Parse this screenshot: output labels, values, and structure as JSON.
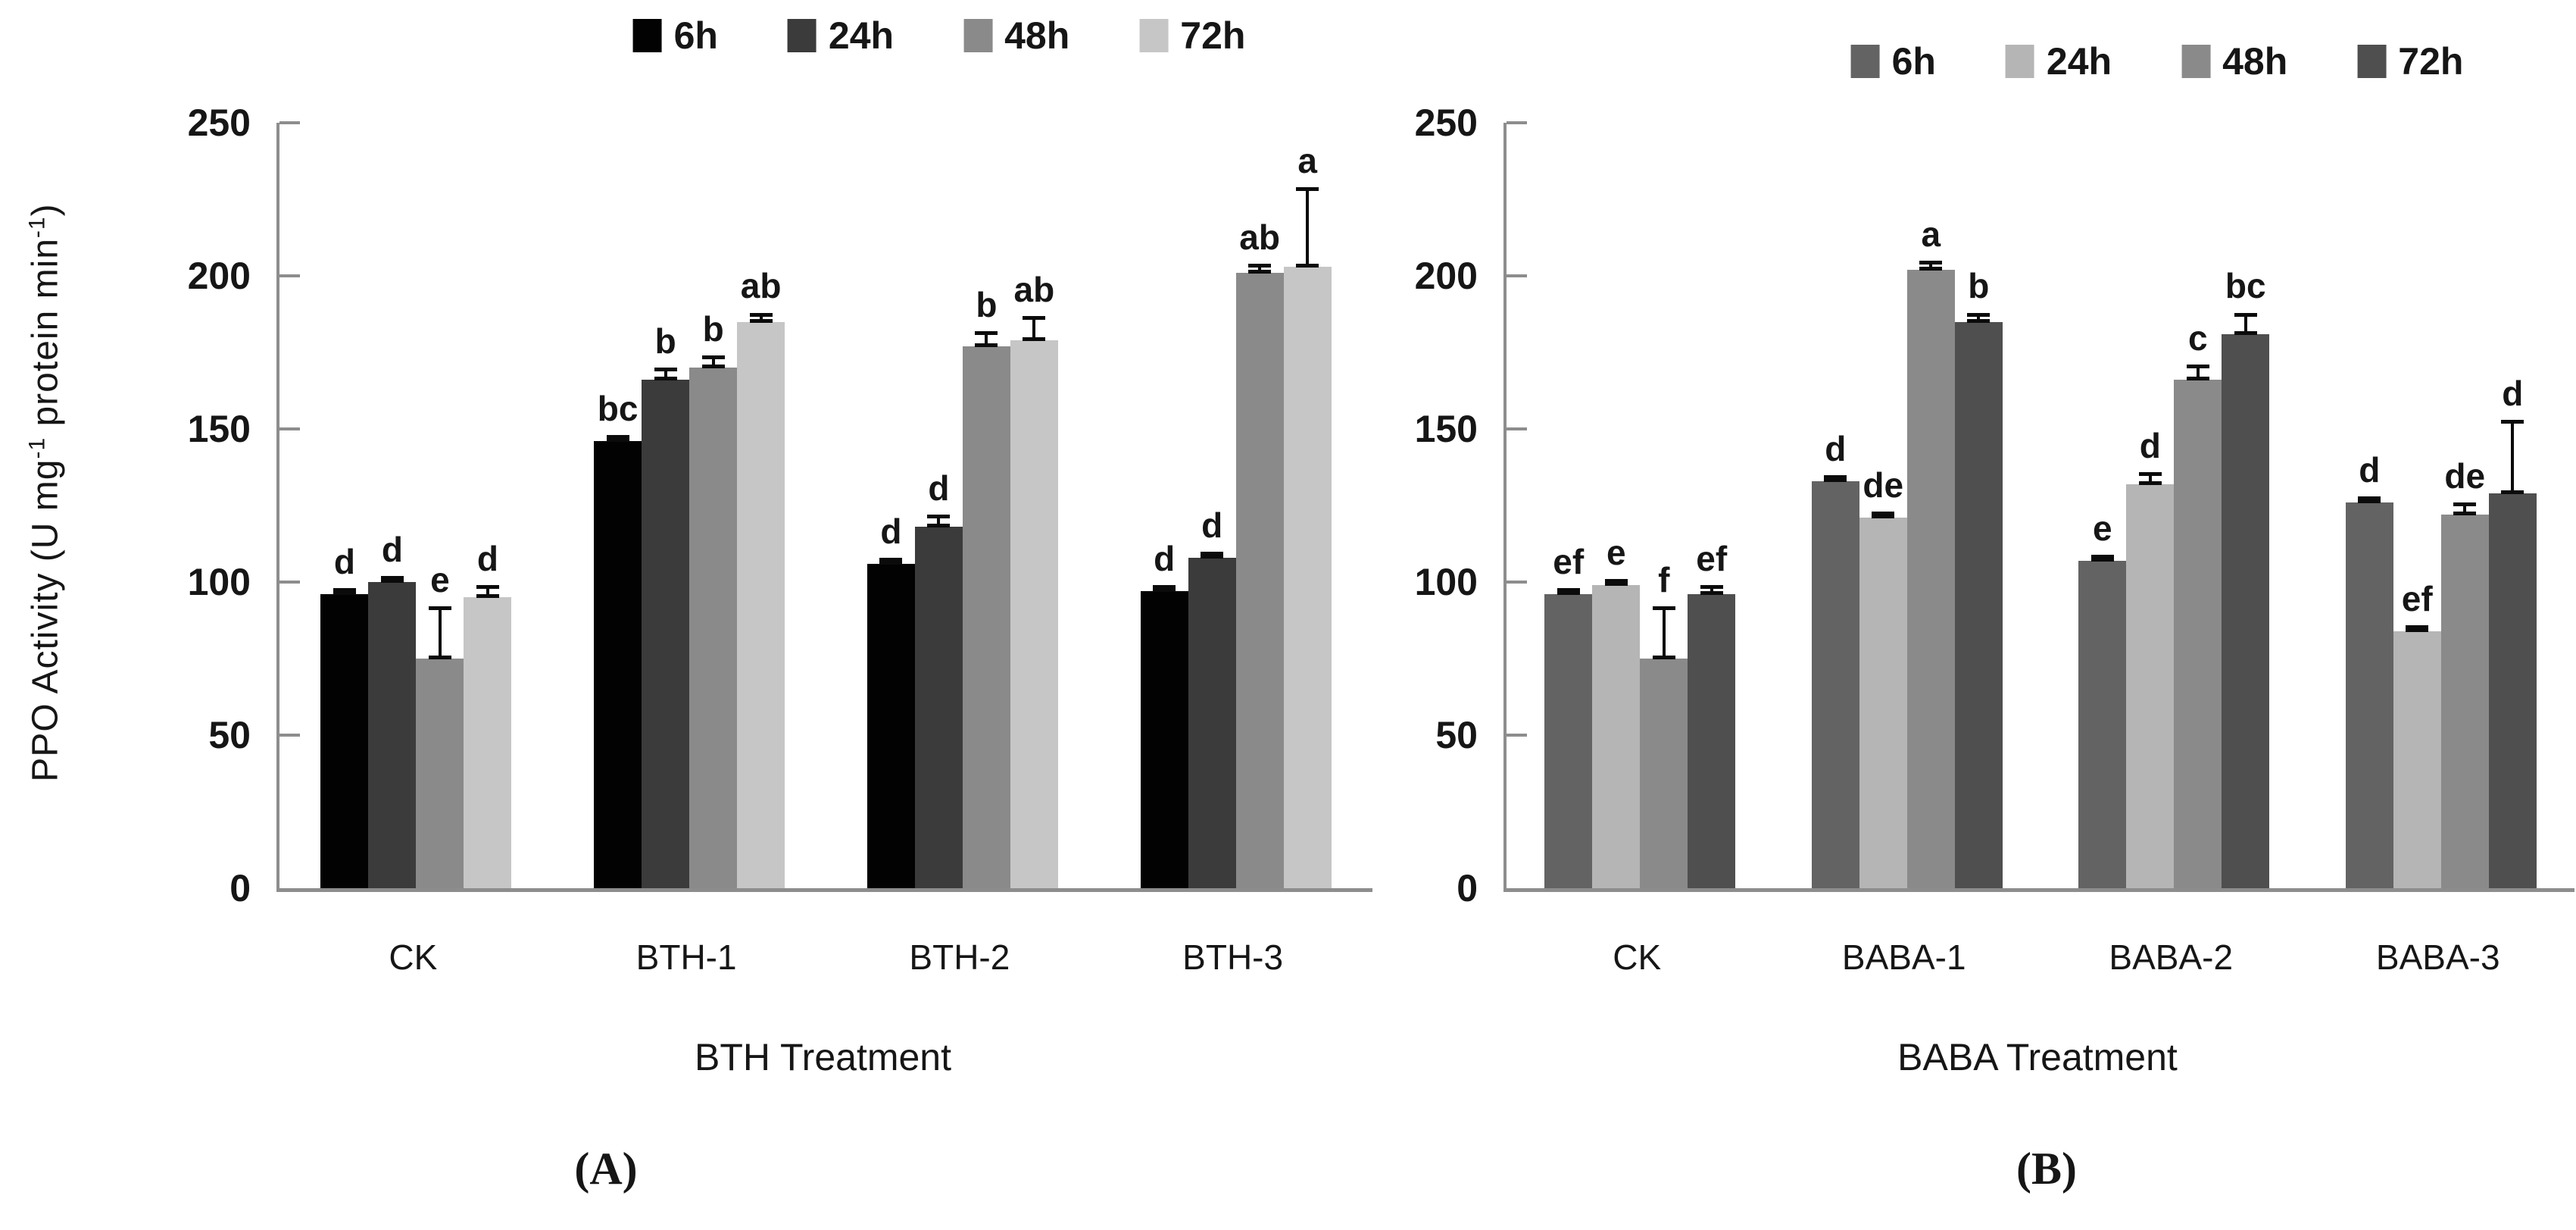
{
  "figure": {
    "background": "#ffffff",
    "captions": {
      "a": "(A)",
      "b": "(B)"
    }
  },
  "chart_data": [
    {
      "id": "A",
      "type": "bar",
      "title": "",
      "xlabel": "BTH Treatment",
      "ylabel": "PPO Activity (U mg-1 protein min-1)",
      "ylabel_parts": [
        {
          "t": "PPO Activity (U mg"
        },
        {
          "sup": "-1"
        },
        {
          "t": " protein min"
        },
        {
          "sup": "-1"
        },
        {
          "t": ")"
        }
      ],
      "ylim": [
        0,
        250
      ],
      "yticks": [
        0,
        50,
        100,
        150,
        200,
        250
      ],
      "grid": false,
      "legend_position": "top",
      "axis_color": "#8d8d8d",
      "errorbar_color": "#0b0b0b",
      "categories": [
        "CK",
        "BTH-1",
        "BTH-2",
        "BTH-3"
      ],
      "series_colors": [
        "#020202",
        "#3b3b3b",
        "#8a8a8a",
        "#c6c6c6"
      ],
      "series": [
        {
          "name": "6h",
          "values": [
            96,
            146,
            106,
            97
          ],
          "errors": [
            2,
            2,
            2,
            2
          ],
          "letters": [
            "d",
            "bc",
            "d",
            "d"
          ]
        },
        {
          "name": "24h",
          "values": [
            100,
            166,
            118,
            108
          ],
          "errors": [
            2,
            4,
            4,
            2
          ],
          "letters": [
            "d",
            "b",
            "d",
            "d"
          ]
        },
        {
          "name": "48h",
          "values": [
            75,
            170,
            177,
            201
          ],
          "errors": [
            17,
            4,
            5,
            3
          ],
          "letters": [
            "e",
            "b",
            "b",
            "ab"
          ]
        },
        {
          "name": "72h",
          "values": [
            95,
            185,
            179,
            203
          ],
          "errors": [
            4,
            3,
            8,
            26
          ],
          "letters": [
            "d",
            "ab",
            "ab",
            "a"
          ]
        }
      ]
    },
    {
      "id": "B",
      "type": "bar",
      "title": "",
      "xlabel": "BABA Treatment",
      "ylabel": "",
      "ylabel_parts": [],
      "ylim": [
        0,
        250
      ],
      "yticks": [
        0,
        50,
        100,
        150,
        200,
        250
      ],
      "grid": false,
      "legend_position": "top",
      "axis_color": "#8d8d8d",
      "errorbar_color": "#0b0b0b",
      "categories": [
        "CK",
        "BABA-1",
        "BABA-2",
        "BABA-3"
      ],
      "series_colors": [
        "#636363",
        "#b5b5b5",
        "#8a8a8a",
        "#4f4f4f"
      ],
      "series": [
        {
          "name": "6h",
          "values": [
            96,
            133,
            107,
            126
          ],
          "errors": [
            2,
            2,
            2,
            2
          ],
          "letters": [
            "ef",
            "d",
            "e",
            "d"
          ]
        },
        {
          "name": "24h",
          "values": [
            99,
            121,
            132,
            84
          ],
          "errors": [
            2,
            2,
            4,
            2
          ],
          "letters": [
            "e",
            "de",
            "d",
            "ef"
          ]
        },
        {
          "name": "48h",
          "values": [
            75,
            202,
            166,
            122
          ],
          "errors": [
            17,
            3,
            5,
            4
          ],
          "letters": [
            "f",
            "a",
            "c",
            "de"
          ]
        },
        {
          "name": "72h",
          "values": [
            96,
            185,
            181,
            129
          ],
          "errors": [
            3,
            3,
            7,
            24
          ],
          "letters": [
            "ef",
            "b",
            "bc",
            "d"
          ]
        }
      ]
    }
  ]
}
